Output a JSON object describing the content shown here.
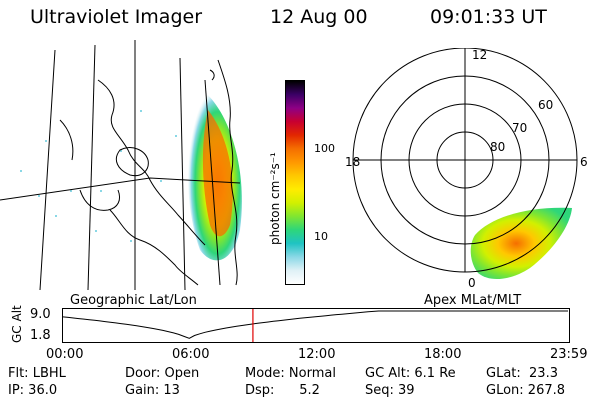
{
  "header": {
    "instrument": "Ultraviolet Imager",
    "date": "12 Aug 00",
    "time": "09:01:33 UT"
  },
  "colorbar": {
    "title": "photon cm⁻²s⁻¹",
    "ticks": [
      "100",
      "10"
    ],
    "colors": [
      "#000000",
      "#3b0066",
      "#8e0085",
      "#c80030",
      "#e22700",
      "#f56e00",
      "#ff9800",
      "#ffc800",
      "#ffec00",
      "#d2f000",
      "#80e630",
      "#2ed67a",
      "#1fc3c3",
      "#8ad8e6",
      "#dff1f6",
      "#ffffff"
    ]
  },
  "geo_panel": {
    "label": "Geographic Lat/Lon"
  },
  "polar_panel": {
    "label": "Apex MLat/MLT",
    "mlt_labels": {
      "top": "12",
      "left": "18",
      "right": "6",
      "bottom": "0"
    },
    "lat_labels": [
      "60",
      "70",
      "80"
    ]
  },
  "altitude_plot": {
    "ylabel": "GC Alt",
    "yticks": [
      "9.0",
      "1.8"
    ],
    "xticks": [
      "00:00",
      "06:00",
      "12:00",
      "18:00",
      "23:59"
    ],
    "marker_time_hours": 9.0258,
    "marker_color": "#e00000"
  },
  "info": {
    "row1": {
      "flt": "Flt: LBHL",
      "door": "Door: Open",
      "mode": "Mode: Normal",
      "gcalt": "GC Alt: 6.1 Re",
      "glat": "GLat:  23.3"
    },
    "row2": {
      "ip": "IP: 36.0",
      "gain": "Gain: 13",
      "dsp": "Dsp:      5.2",
      "seq": "Seq: 39",
      "glon": "GLon: 267.8"
    }
  }
}
